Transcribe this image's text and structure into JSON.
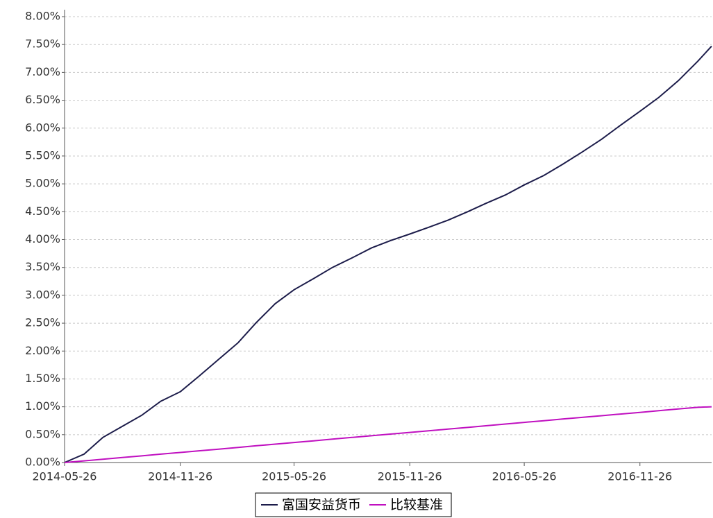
{
  "chart_data": {
    "type": "line",
    "x": [
      "2014-05-26",
      "2014-06-26",
      "2014-07-26",
      "2014-08-26",
      "2014-09-26",
      "2014-10-26",
      "2014-11-26",
      "2014-12-26",
      "2015-01-26",
      "2015-02-26",
      "2015-03-26",
      "2015-04-26",
      "2015-05-26",
      "2015-06-26",
      "2015-07-26",
      "2015-08-26",
      "2015-09-26",
      "2015-10-26",
      "2015-11-26",
      "2015-12-26",
      "2016-01-26",
      "2016-02-26",
      "2016-03-26",
      "2016-04-26",
      "2016-05-26",
      "2016-06-26",
      "2016-07-26",
      "2016-08-26",
      "2016-09-26",
      "2016-10-26",
      "2016-11-26",
      "2016-12-26",
      "2017-01-26",
      "2017-02-26",
      "2017-03-20"
    ],
    "series": [
      {
        "name": "富国安益货币",
        "color": "#1c1c4a",
        "values": [
          0,
          0.15,
          0.45,
          0.65,
          0.85,
          1.1,
          1.27,
          1.55,
          1.85,
          2.15,
          2.5,
          2.85,
          3.1,
          3.3,
          3.5,
          3.67,
          3.85,
          3.98,
          4.1,
          4.22,
          4.35,
          4.5,
          4.65,
          4.8,
          4.98,
          5.15,
          5.35,
          5.57,
          5.8,
          6.05,
          6.3,
          6.55,
          6.85,
          7.2,
          7.47
        ]
      },
      {
        "name": "比较基准",
        "color": "#c010c0",
        "values": [
          0,
          0.03,
          0.06,
          0.09,
          0.12,
          0.15,
          0.18,
          0.21,
          0.24,
          0.27,
          0.3,
          0.33,
          0.36,
          0.39,
          0.42,
          0.45,
          0.48,
          0.51,
          0.54,
          0.57,
          0.6,
          0.63,
          0.66,
          0.69,
          0.72,
          0.75,
          0.78,
          0.81,
          0.84,
          0.87,
          0.9,
          0.93,
          0.96,
          0.99,
          1.0
        ]
      }
    ],
    "xlim": [
      "2014-05-26",
      "2017-03-20"
    ],
    "xticks": [
      "2014-05-26",
      "2014-11-26",
      "2015-05-26",
      "2015-11-26",
      "2016-05-26",
      "2016-11-26"
    ],
    "ylim": [
      0,
      8
    ],
    "yticks": [
      {
        "value": 0,
        "label": "0.00%"
      },
      {
        "value": 0.5,
        "label": "0.50%"
      },
      {
        "value": 1,
        "label": "1.00%"
      },
      {
        "value": 1.5,
        "label": "1.50%"
      },
      {
        "value": 2,
        "label": "2.00%"
      },
      {
        "value": 2.5,
        "label": "2.50%"
      },
      {
        "value": 3,
        "label": "3.00%"
      },
      {
        "value": 3.5,
        "label": "3.50%"
      },
      {
        "value": 4,
        "label": "4.00%"
      },
      {
        "value": 4.5,
        "label": "4.50%"
      },
      {
        "value": 5,
        "label": "5.00%"
      },
      {
        "value": 5.5,
        "label": "5.50%"
      },
      {
        "value": 6,
        "label": "6.00%"
      },
      {
        "value": 6.5,
        "label": "6.50%"
      },
      {
        "value": 7,
        "label": "7.00%"
      },
      {
        "value": 7.5,
        "label": "7.50%"
      },
      {
        "value": 8,
        "label": "8.00%"
      }
    ],
    "grid": true,
    "legend": "bottom"
  }
}
